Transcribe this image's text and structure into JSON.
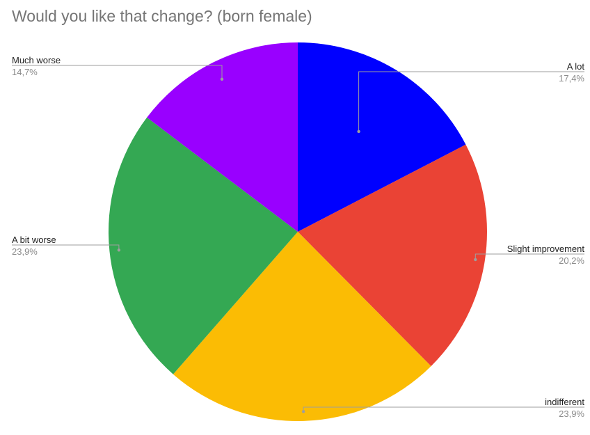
{
  "chart_data": {
    "type": "pie",
    "title": "Would you like that change? (born female)",
    "legend": "none",
    "slices": [
      {
        "label": "A lot",
        "value": 17.4,
        "value_label": "17,4%",
        "color": "#0000ff"
      },
      {
        "label": "Slight improvement",
        "value": 20.2,
        "value_label": "20,2%",
        "color": "#ea4335"
      },
      {
        "label": "indifferent",
        "value": 23.9,
        "value_label": "23,9%",
        "color": "#fbbc04"
      },
      {
        "label": "A bit worse",
        "value": 23.9,
        "value_label": "23,9%",
        "color": "#34a853"
      },
      {
        "label": "Much worse",
        "value": 14.7,
        "value_label": "14,7%",
        "color": "#9900ff"
      }
    ]
  }
}
